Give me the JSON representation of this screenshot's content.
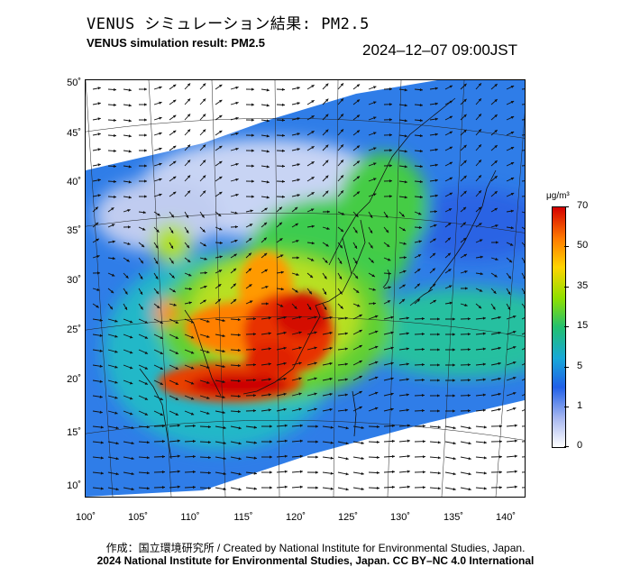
{
  "header": {
    "title_jp": "VENUS シミュレーション結果: PM2.5",
    "title_en": "VENUS simulation result: PM2.5",
    "timestamp": "2024–12–07 09:00JST"
  },
  "map": {
    "lat_ticks": [
      "50˚",
      "45˚",
      "40˚",
      "35˚",
      "30˚",
      "25˚",
      "20˚",
      "15˚",
      "10˚"
    ],
    "lon_ticks": [
      "100˚",
      "105˚",
      "110˚",
      "115˚",
      "120˚",
      "125˚",
      "130˚",
      "135˚",
      "140˚"
    ],
    "lat_range": [
      9,
      51
    ],
    "lon_range": [
      100,
      141
    ]
  },
  "colorbar": {
    "unit": "μg/m³",
    "labels": [
      "70",
      "50",
      "35",
      "15",
      "5",
      "1",
      "0"
    ],
    "colors": [
      "#d40000",
      "#ff7a00",
      "#ffd400",
      "#8ee000",
      "#22c070",
      "#18a8d8",
      "#2060e8",
      "#a8b8f0",
      "#ffffff"
    ]
  },
  "footer": {
    "credit_line": "作成：国立環境研究所 / Created by National Institute for Environmental Studies, Japan.",
    "license_line": "2024 National Institute for Environmental Studies, Japan. CC BY–NC 4.0 International"
  }
}
